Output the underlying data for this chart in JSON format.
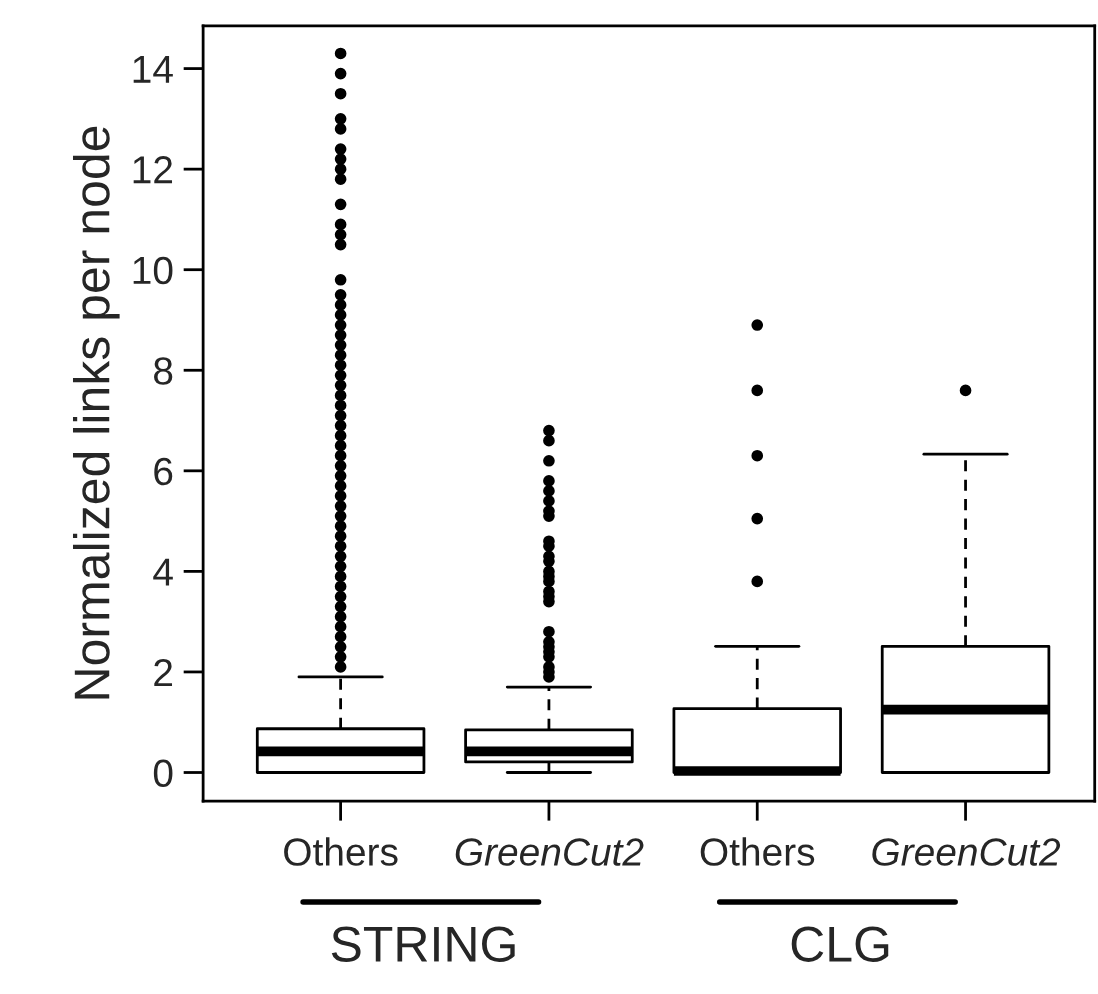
{
  "chart_data": {
    "type": "box",
    "ylabel": "Normalized links per node",
    "categories": [
      "Others",
      "GreenCut2",
      "Others",
      "GreenCut2"
    ],
    "boxes": [
      {
        "low": 0,
        "q1": 0,
        "median": 0.42,
        "q3": 0.87,
        "high": 1.9,
        "outliers": [
          2.1,
          2.3,
          2.5,
          2.7,
          2.9,
          3.1,
          3.3,
          3.5,
          3.7,
          3.9,
          4.1,
          4.3,
          4.5,
          4.7,
          4.9,
          5.1,
          5.3,
          5.5,
          5.7,
          5.9,
          6.1,
          6.3,
          6.5,
          6.7,
          6.9,
          7.1,
          7.3,
          7.5,
          7.7,
          7.9,
          8.1,
          8.3,
          8.5,
          8.7,
          8.9,
          9.1,
          9.3,
          9.5,
          9.8,
          10.5,
          10.7,
          10.9,
          11.3,
          11.8,
          12.0,
          12.2,
          12.4,
          12.8,
          13.0,
          13.5,
          13.9,
          14.3
        ]
      },
      {
        "low": 0,
        "q1": 0.21,
        "median": 0.42,
        "q3": 0.85,
        "high": 1.7,
        "outliers": [
          1.9,
          2.0,
          2.1,
          2.3,
          2.4,
          2.5,
          2.6,
          2.8,
          3.4,
          3.5,
          3.6,
          3.8,
          3.9,
          4.0,
          4.2,
          4.3,
          4.5,
          4.6,
          5.1,
          5.2,
          5.4,
          5.6,
          5.8,
          6.2,
          6.6,
          6.8
        ]
      },
      {
        "low": 0,
        "q1": 0,
        "median": 0.03,
        "q3": 1.27,
        "high": 2.51,
        "outliers": [
          3.8,
          5.05,
          6.3,
          7.6,
          8.9
        ]
      },
      {
        "low": 0,
        "q1": 0,
        "median": 1.25,
        "q3": 2.51,
        "high": 6.33,
        "outliers": [
          7.6
        ]
      }
    ],
    "ylim": [
      -0.57,
      14.85
    ],
    "yticks": [
      0,
      2,
      4,
      6,
      8,
      10,
      12,
      14
    ],
    "grid": false,
    "annotations": [
      "STRING",
      "CLG"
    ]
  }
}
